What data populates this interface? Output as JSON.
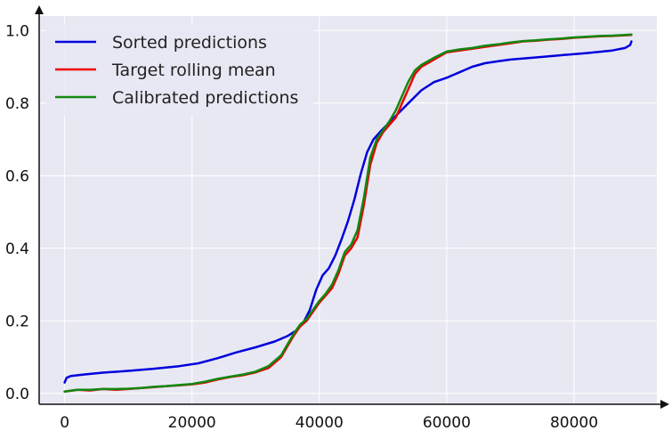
{
  "chart_data": {
    "type": "line",
    "title": "",
    "xlabel": "",
    "ylabel": "",
    "xlim": [
      -4000,
      93000
    ],
    "ylim": [
      -0.03,
      1.04
    ],
    "grid": true,
    "legend_position": "top-left",
    "x_ticks": [
      {
        "value": 0,
        "label": "0"
      },
      {
        "value": 20000,
        "label": "20000"
      },
      {
        "value": 40000,
        "label": "40000"
      },
      {
        "value": 60000,
        "label": "60000"
      },
      {
        "value": 80000,
        "label": "80000"
      }
    ],
    "y_ticks": [
      {
        "value": 0.0,
        "label": "0.0"
      },
      {
        "value": 0.2,
        "label": "0.2"
      },
      {
        "value": 0.4,
        "label": "0.4"
      },
      {
        "value": 0.6,
        "label": "0.6"
      },
      {
        "value": 0.8,
        "label": "0.8"
      },
      {
        "value": 1.0,
        "label": "1.0"
      }
    ],
    "series": [
      {
        "name": "Sorted predictions",
        "color": "#0000dd",
        "x": [
          0,
          300,
          1000,
          3000,
          6000,
          10000,
          14000,
          18000,
          21000,
          24000,
          27000,
          30000,
          33000,
          35000,
          36500,
          37500,
          38500,
          39500,
          40500,
          41500,
          42500,
          43500,
          44500,
          45500,
          46500,
          47500,
          48500,
          49500,
          50500,
          52000,
          54000,
          56000,
          58000,
          60000,
          62000,
          64000,
          66000,
          68000,
          70000,
          74000,
          78000,
          82000,
          86000,
          88000,
          88800,
          89000
        ],
        "y": [
          0.03,
          0.043,
          0.048,
          0.052,
          0.057,
          0.062,
          0.068,
          0.075,
          0.083,
          0.097,
          0.113,
          0.127,
          0.143,
          0.158,
          0.175,
          0.195,
          0.23,
          0.285,
          0.325,
          0.345,
          0.38,
          0.425,
          0.475,
          0.535,
          0.605,
          0.665,
          0.7,
          0.72,
          0.738,
          0.765,
          0.8,
          0.835,
          0.858,
          0.87,
          0.885,
          0.9,
          0.91,
          0.915,
          0.92,
          0.926,
          0.932,
          0.938,
          0.945,
          0.952,
          0.96,
          0.97
        ]
      },
      {
        "name": "Target rolling mean",
        "color": "#ee0000",
        "x": [
          0,
          2000,
          4000,
          6000,
          8000,
          10000,
          12000,
          14000,
          16000,
          18000,
          20000,
          22000,
          24000,
          26000,
          28000,
          30000,
          32000,
          34000,
          35000,
          36000,
          37000,
          38000,
          39000,
          40000,
          41000,
          42000,
          43000,
          44000,
          45000,
          46000,
          47000,
          48000,
          49000,
          50000,
          51000,
          52000,
          53000,
          54000,
          55000,
          56000,
          57000,
          58000,
          60000,
          62000,
          64000,
          66000,
          68000,
          70000,
          72000,
          74000,
          76000,
          78000,
          80000,
          82000,
          84000,
          86000,
          88000,
          89000
        ],
        "y": [
          0.005,
          0.01,
          0.008,
          0.012,
          0.01,
          0.012,
          0.015,
          0.017,
          0.02,
          0.022,
          0.025,
          0.03,
          0.038,
          0.045,
          0.05,
          0.058,
          0.07,
          0.1,
          0.13,
          0.16,
          0.185,
          0.2,
          0.225,
          0.25,
          0.27,
          0.29,
          0.33,
          0.38,
          0.4,
          0.43,
          0.52,
          0.63,
          0.69,
          0.72,
          0.74,
          0.76,
          0.8,
          0.84,
          0.88,
          0.9,
          0.91,
          0.92,
          0.94,
          0.945,
          0.95,
          0.955,
          0.96,
          0.965,
          0.97,
          0.972,
          0.975,
          0.977,
          0.98,
          0.982,
          0.984,
          0.985,
          0.987,
          0.988
        ]
      },
      {
        "name": "Calibrated predictions",
        "color": "#118811",
        "x": [
          0,
          2000,
          4000,
          6000,
          8000,
          10000,
          12000,
          14000,
          16000,
          18000,
          20000,
          22000,
          24000,
          26000,
          28000,
          30000,
          32000,
          34000,
          35000,
          36000,
          37000,
          38000,
          39000,
          40000,
          41000,
          42000,
          43000,
          44000,
          45000,
          46000,
          47000,
          48000,
          49000,
          50000,
          51000,
          52000,
          53000,
          54000,
          55000,
          56000,
          57000,
          58000,
          60000,
          62000,
          64000,
          66000,
          68000,
          70000,
          72000,
          74000,
          76000,
          78000,
          80000,
          82000,
          84000,
          86000,
          88000,
          89000
        ],
        "y": [
          0.005,
          0.01,
          0.01,
          0.012,
          0.012,
          0.013,
          0.015,
          0.018,
          0.02,
          0.023,
          0.026,
          0.032,
          0.04,
          0.046,
          0.052,
          0.06,
          0.075,
          0.105,
          0.135,
          0.165,
          0.19,
          0.205,
          0.23,
          0.255,
          0.275,
          0.3,
          0.34,
          0.39,
          0.41,
          0.45,
          0.54,
          0.65,
          0.7,
          0.725,
          0.75,
          0.78,
          0.82,
          0.86,
          0.89,
          0.905,
          0.915,
          0.925,
          0.942,
          0.948,
          0.952,
          0.958,
          0.962,
          0.967,
          0.971,
          0.973,
          0.976,
          0.978,
          0.981,
          0.983,
          0.985,
          0.986,
          0.988,
          0.989
        ]
      }
    ]
  }
}
